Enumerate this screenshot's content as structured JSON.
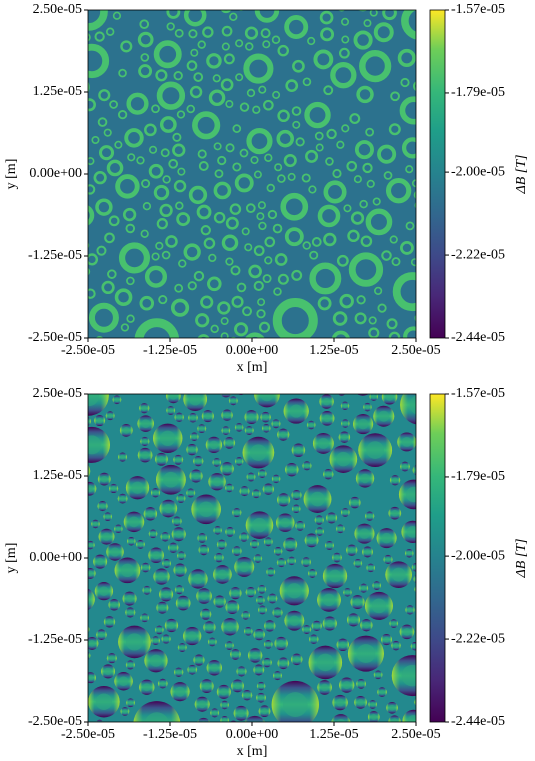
{
  "chart_data": [
    {
      "type": "heatmap",
      "variant": "rings",
      "xlabel": "x [m]",
      "ylabel": "y [m]",
      "xlim": [
        -2.5e-05,
        2.5e-05
      ],
      "ylim": [
        -2.5e-05,
        2.5e-05
      ],
      "xticks": [
        {
          "value": -2.5e-05,
          "label": "-2.50e-05"
        },
        {
          "value": -1.25e-05,
          "label": "-1.25e-05"
        },
        {
          "value": 0,
          "label": "0.00e+00"
        },
        {
          "value": 1.25e-05,
          "label": "1.25e-05"
        },
        {
          "value": 2.5e-05,
          "label": "2.50e-05"
        }
      ],
      "yticks": [
        {
          "value": -2.5e-05,
          "label": "-2.50e-05"
        },
        {
          "value": -1.25e-05,
          "label": "-1.25e-05"
        },
        {
          "value": 0,
          "label": "0.00e+00"
        },
        {
          "value": 1.25e-05,
          "label": "1.25e-05"
        },
        {
          "value": 2.5e-05,
          "label": "2.50e-05"
        }
      ],
      "colormap": "viridis",
      "colorbar_label": "ΔB [T]",
      "clim": [
        -2.44e-05,
        -1.57e-05
      ],
      "cticks": [
        {
          "value": -2.44e-05,
          "label": "-2.44e-05"
        },
        {
          "value": -2.22e-05,
          "label": "-2.22e-05"
        },
        {
          "value": -2e-05,
          "label": "-2.00e-05"
        },
        {
          "value": -1.79e-05,
          "label": "-1.79e-05"
        },
        {
          "value": -1.57e-05,
          "label": "-1.57e-05"
        }
      ]
    },
    {
      "type": "heatmap",
      "variant": "field",
      "xlabel": "x [m]",
      "ylabel": "y [m]",
      "xlim": [
        -2.5e-05,
        2.5e-05
      ],
      "ylim": [
        -2.5e-05,
        2.5e-05
      ],
      "xticks": [
        {
          "value": -2.5e-05,
          "label": "-2.50e-05"
        },
        {
          "value": -1.25e-05,
          "label": "-1.25e-05"
        },
        {
          "value": 0,
          "label": "0.00e+00"
        },
        {
          "value": 1.25e-05,
          "label": "1.25e-05"
        },
        {
          "value": 2.5e-05,
          "label": "2.50e-05"
        }
      ],
      "yticks": [
        {
          "value": -2.5e-05,
          "label": "-2.50e-05"
        },
        {
          "value": -1.25e-05,
          "label": "-1.25e-05"
        },
        {
          "value": 0,
          "label": "0.00e+00"
        },
        {
          "value": 1.25e-05,
          "label": "1.25e-05"
        },
        {
          "value": 2.5e-05,
          "label": "2.50e-05"
        }
      ],
      "colormap": "viridis",
      "colorbar_label": "ΔB [T]",
      "clim": [
        -2.44e-05,
        -1.57e-05
      ],
      "cticks": [
        {
          "value": -2.44e-05,
          "label": "-2.44e-05"
        },
        {
          "value": -2.22e-05,
          "label": "-2.22e-05"
        },
        {
          "value": -2e-05,
          "label": "-2.00e-05"
        },
        {
          "value": -1.79e-05,
          "label": "-1.79e-05"
        },
        {
          "value": -1.57e-05,
          "label": "-1.57e-05"
        }
      ]
    }
  ]
}
